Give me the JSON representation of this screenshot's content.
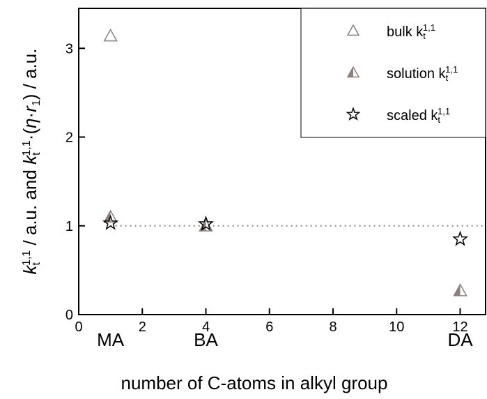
{
  "chart_data": {
    "type": "scatter",
    "xlabel": "number of C-atoms in alkyl group",
    "ylabel_parts": [
      {
        "text": "k",
        "style": "italic"
      },
      {
        "text": "t",
        "style": "sub"
      },
      {
        "text": "1,1",
        "style": "sup"
      },
      {
        "text": " / a.u. and ",
        "style": "normal"
      },
      {
        "text": "k",
        "style": "italic"
      },
      {
        "text": "t",
        "style": "sub"
      },
      {
        "text": "1,1",
        "style": "sup"
      },
      {
        "text": "·(",
        "style": "normal"
      },
      {
        "text": "η",
        "style": "italic"
      },
      {
        "text": "·",
        "style": "normal"
      },
      {
        "text": "r",
        "style": "italic"
      },
      {
        "text": "1",
        "style": "sub"
      },
      {
        "text": ") / a.u.",
        "style": "normal"
      }
    ],
    "xlim": [
      0,
      12.8
    ],
    "ylim": [
      0,
      3.45
    ],
    "xticks": [
      0,
      2,
      4,
      6,
      8,
      10,
      12
    ],
    "yticks": [
      0,
      1,
      2,
      3
    ],
    "hline": 1,
    "annotations": [
      {
        "text": "MA",
        "x": 1
      },
      {
        "text": "BA",
        "x": 4
      },
      {
        "text": "DA",
        "x": 12
      }
    ],
    "legend": "upper right",
    "series": [
      {
        "name": "bulk k",
        "name_sub": "t",
        "name_sup": "1,1",
        "marker": "triangle-open",
        "color": "#8a7f7c",
        "x": [
          1
        ],
        "values": [
          3.14
        ]
      },
      {
        "name": "solution k",
        "name_sub": "t",
        "name_sup": "1,1",
        "marker": "triangle-half",
        "color": "#8a7f7c",
        "x": [
          1,
          4,
          12
        ],
        "values": [
          1.1,
          1.0,
          0.27
        ]
      },
      {
        "name": "scaled k",
        "name_sub": "t",
        "name_sup": "1,1",
        "marker": "star",
        "color": "#000000",
        "x": [
          1,
          4,
          12
        ],
        "values": [
          1.03,
          1.02,
          0.85
        ]
      }
    ]
  }
}
